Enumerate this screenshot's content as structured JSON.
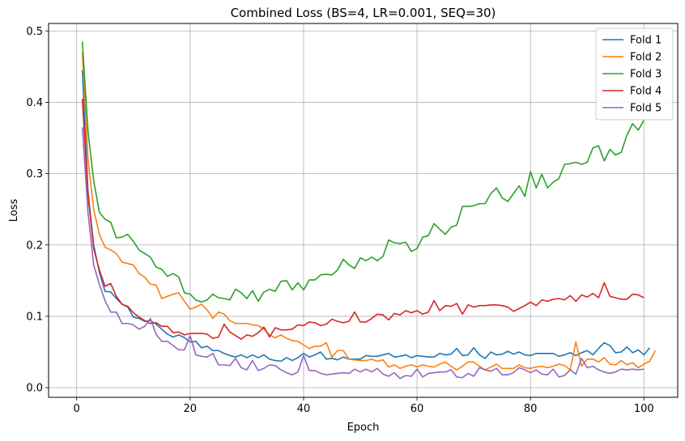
{
  "chart_data": {
    "type": "line",
    "title": "Combined Loss (BS=4, LR=0.001, SEQ=30)",
    "xlabel": "Epoch",
    "ylabel": "Loss",
    "xlim": [
      -4.95,
      105.95
    ],
    "ylim": [
      -0.0135,
      0.5105
    ],
    "xticks": [
      0,
      20,
      40,
      60,
      80,
      100
    ],
    "yticks": [
      0.0,
      0.1,
      0.2,
      0.3,
      0.4,
      0.5
    ],
    "xtick_labels": [
      "0",
      "20",
      "40",
      "60",
      "80",
      "100"
    ],
    "ytick_labels": [
      "0.0",
      "0.1",
      "0.2",
      "0.3",
      "0.4",
      "0.5"
    ],
    "grid": true,
    "legend_position": "top-right",
    "x_start": 1,
    "series": [
      {
        "name": "Fold 1",
        "color": "#1f77b4",
        "values": [
          0.445,
          0.275,
          0.2,
          0.162,
          0.135,
          0.134,
          0.125,
          0.117,
          0.113,
          0.099,
          0.097,
          0.093,
          0.094,
          0.089,
          0.082,
          0.075,
          0.071,
          0.074,
          0.07,
          0.064,
          0.065,
          0.056,
          0.058,
          0.052,
          0.052,
          0.048,
          0.045,
          0.043,
          0.046,
          0.042,
          0.046,
          0.042,
          0.046,
          0.04,
          0.038,
          0.037,
          0.042,
          0.038,
          0.042,
          0.048,
          0.043,
          0.046,
          0.05,
          0.04,
          0.041,
          0.039,
          0.043,
          0.04,
          0.04,
          0.04,
          0.045,
          0.044,
          0.044,
          0.046,
          0.048,
          0.043,
          0.044,
          0.046,
          0.042,
          0.045,
          0.044,
          0.043,
          0.043,
          0.048,
          0.046,
          0.047,
          0.055,
          0.045,
          0.046,
          0.056,
          0.046,
          0.041,
          0.05,
          0.046,
          0.047,
          0.051,
          0.047,
          0.05,
          0.046,
          0.045,
          0.048,
          0.048,
          0.048,
          0.048,
          0.044,
          0.046,
          0.049,
          0.045,
          0.049,
          0.052,
          0.046,
          0.055,
          0.063,
          0.059,
          0.049,
          0.05,
          0.057,
          0.049,
          0.053,
          0.046,
          0.056
        ]
      },
      {
        "name": "Fold 2",
        "color": "#ff7f0e",
        "values": [
          0.47,
          0.32,
          0.25,
          0.215,
          0.197,
          0.193,
          0.188,
          0.176,
          0.174,
          0.172,
          0.16,
          0.155,
          0.145,
          0.144,
          0.125,
          0.128,
          0.131,
          0.133,
          0.121,
          0.11,
          0.113,
          0.117,
          0.109,
          0.097,
          0.106,
          0.103,
          0.094,
          0.09,
          0.09,
          0.09,
          0.088,
          0.087,
          0.082,
          0.074,
          0.07,
          0.074,
          0.069,
          0.066,
          0.065,
          0.06,
          0.055,
          0.058,
          0.058,
          0.063,
          0.043,
          0.052,
          0.052,
          0.04,
          0.039,
          0.038,
          0.038,
          0.04,
          0.037,
          0.039,
          0.029,
          0.032,
          0.027,
          0.03,
          0.032,
          0.029,
          0.032,
          0.03,
          0.029,
          0.033,
          0.036,
          0.03,
          0.025,
          0.03,
          0.036,
          0.036,
          0.03,
          0.025,
          0.029,
          0.033,
          0.027,
          0.027,
          0.027,
          0.032,
          0.028,
          0.027,
          0.029,
          0.03,
          0.028,
          0.03,
          0.033,
          0.031,
          0.025,
          0.064,
          0.03,
          0.04,
          0.04,
          0.036,
          0.042,
          0.033,
          0.032,
          0.038,
          0.032,
          0.035,
          0.028,
          0.033,
          0.037,
          0.052
        ]
      },
      {
        "name": "Fold 3",
        "color": "#2ca02c",
        "values": [
          0.485,
          0.36,
          0.29,
          0.246,
          0.236,
          0.232,
          0.21,
          0.211,
          0.215,
          0.205,
          0.193,
          0.188,
          0.183,
          0.169,
          0.166,
          0.156,
          0.16,
          0.155,
          0.133,
          0.131,
          0.123,
          0.12,
          0.123,
          0.131,
          0.126,
          0.125,
          0.123,
          0.138,
          0.133,
          0.125,
          0.136,
          0.121,
          0.134,
          0.138,
          0.135,
          0.149,
          0.15,
          0.137,
          0.147,
          0.137,
          0.151,
          0.151,
          0.158,
          0.159,
          0.158,
          0.165,
          0.18,
          0.172,
          0.167,
          0.182,
          0.178,
          0.183,
          0.178,
          0.184,
          0.207,
          0.203,
          0.202,
          0.204,
          0.191,
          0.195,
          0.211,
          0.213,
          0.23,
          0.222,
          0.215,
          0.225,
          0.228,
          0.254,
          0.254,
          0.255,
          0.258,
          0.258,
          0.272,
          0.28,
          0.266,
          0.261,
          0.272,
          0.283,
          0.268,
          0.303,
          0.28,
          0.299,
          0.28,
          0.288,
          0.293,
          0.313,
          0.314,
          0.316,
          0.313,
          0.316,
          0.336,
          0.339,
          0.318,
          0.334,
          0.326,
          0.33,
          0.354,
          0.37,
          0.361,
          0.375
        ]
      },
      {
        "name": "Fold 4",
        "color": "#d62728",
        "values": [
          0.405,
          0.27,
          0.195,
          0.165,
          0.142,
          0.146,
          0.128,
          0.117,
          0.114,
          0.105,
          0.099,
          0.094,
          0.09,
          0.091,
          0.086,
          0.086,
          0.077,
          0.078,
          0.074,
          0.076,
          0.076,
          0.076,
          0.075,
          0.069,
          0.071,
          0.089,
          0.078,
          0.073,
          0.068,
          0.074,
          0.072,
          0.077,
          0.085,
          0.071,
          0.084,
          0.081,
          0.081,
          0.082,
          0.088,
          0.087,
          0.092,
          0.091,
          0.087,
          0.089,
          0.096,
          0.093,
          0.091,
          0.093,
          0.106,
          0.092,
          0.092,
          0.097,
          0.103,
          0.102,
          0.095,
          0.104,
          0.102,
          0.108,
          0.105,
          0.108,
          0.103,
          0.106,
          0.122,
          0.108,
          0.115,
          0.114,
          0.118,
          0.103,
          0.116,
          0.113,
          0.115,
          0.115,
          0.116,
          0.116,
          0.115,
          0.113,
          0.107,
          0.111,
          0.115,
          0.12,
          0.115,
          0.123,
          0.121,
          0.124,
          0.125,
          0.123,
          0.129,
          0.121,
          0.13,
          0.127,
          0.132,
          0.126,
          0.147,
          0.128,
          0.126,
          0.124,
          0.124,
          0.131,
          0.13,
          0.126
        ]
      },
      {
        "name": "Fold 5",
        "color": "#9467bd",
        "values": [
          0.365,
          0.245,
          0.172,
          0.145,
          0.122,
          0.106,
          0.106,
          0.09,
          0.09,
          0.088,
          0.082,
          0.086,
          0.097,
          0.075,
          0.065,
          0.065,
          0.059,
          0.053,
          0.053,
          0.073,
          0.046,
          0.044,
          0.043,
          0.048,
          0.032,
          0.032,
          0.031,
          0.041,
          0.028,
          0.025,
          0.038,
          0.024,
          0.027,
          0.032,
          0.031,
          0.025,
          0.021,
          0.018,
          0.022,
          0.045,
          0.024,
          0.024,
          0.02,
          0.018,
          0.019,
          0.02,
          0.021,
          0.02,
          0.026,
          0.022,
          0.026,
          0.022,
          0.027,
          0.019,
          0.016,
          0.021,
          0.013,
          0.017,
          0.016,
          0.026,
          0.015,
          0.02,
          0.021,
          0.022,
          0.022,
          0.025,
          0.015,
          0.014,
          0.02,
          0.016,
          0.028,
          0.025,
          0.023,
          0.027,
          0.018,
          0.018,
          0.021,
          0.028,
          0.025,
          0.021,
          0.025,
          0.019,
          0.018,
          0.026,
          0.015,
          0.017,
          0.025,
          0.019,
          0.041,
          0.028,
          0.03,
          0.025,
          0.022,
          0.02,
          0.022,
          0.026,
          0.025,
          0.026,
          0.025,
          0.026
        ]
      }
    ]
  }
}
